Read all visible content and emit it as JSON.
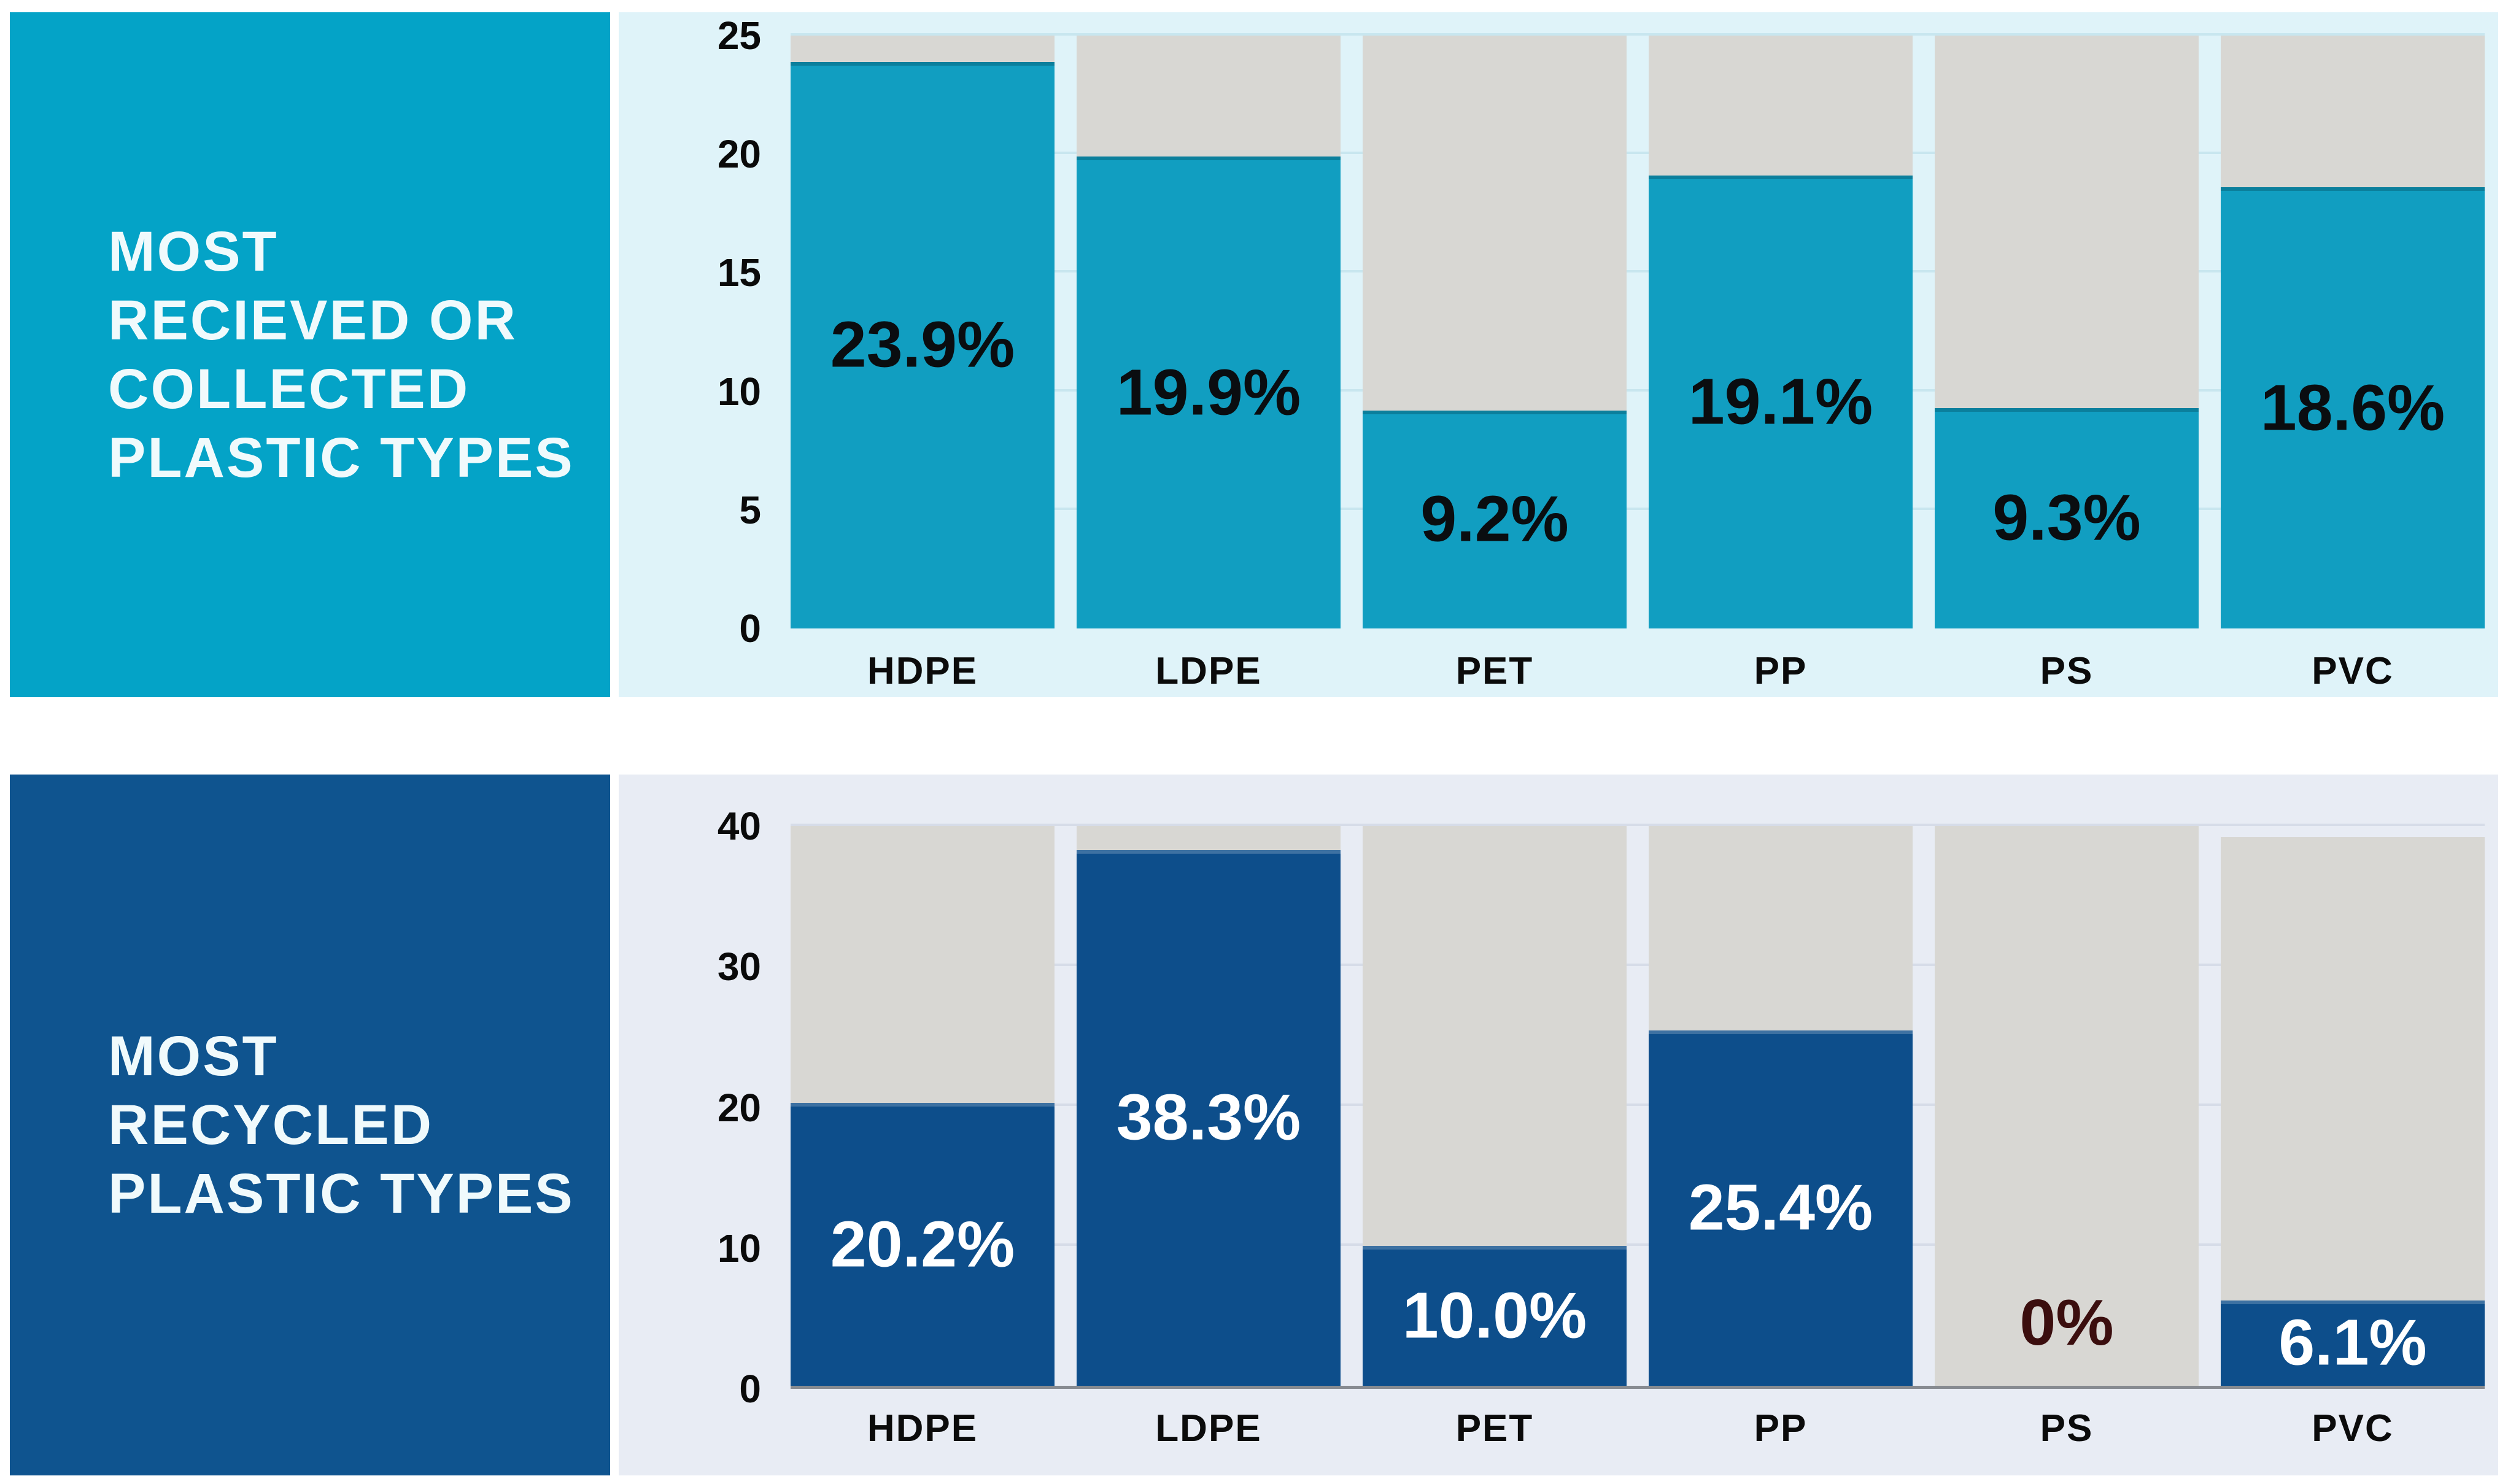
{
  "page": {
    "background": "#ffffff"
  },
  "chart_data": [
    {
      "type": "bar",
      "title": "MOST RECIEVED OR COLLECTED PLASTIC TYPES",
      "title_lines": [
        "MOST",
        "RECIEVED OR",
        "COLLECTED",
        "PLASTIC TYPES"
      ],
      "categories": [
        "HDPE",
        "LDPE",
        "PET",
        "PP",
        "PS",
        "PVC"
      ],
      "values": [
        23.9,
        19.9,
        9.2,
        19.1,
        9.3,
        18.6
      ],
      "value_labels": [
        "23.9%",
        "19.9%",
        "9.2%",
        "19.1%",
        "9.3%",
        "18.6%"
      ],
      "background_bar_values": [
        25,
        25,
        25,
        25,
        25,
        25
      ],
      "ylim": [
        0,
        25
      ],
      "yticks": [
        0,
        5,
        10,
        15,
        20,
        25
      ],
      "ytick_labels": [
        "0",
        "5",
        "10",
        "15",
        "20",
        "25"
      ],
      "grid": true,
      "legend": "none",
      "xlabel": "",
      "ylabel": "",
      "colors": {
        "panel": "#04A3C7",
        "plot_background": "#DFF3F9",
        "bar": "#119EC1",
        "background_bar": "#D8D7D3",
        "value_label": "#0A0D10",
        "axis_text": "#0A0A0A",
        "title_text": "#F0FAFC"
      }
    },
    {
      "type": "bar",
      "title": "MOST RECYCLED PLASTIC TYPES",
      "title_lines": [
        "MOST",
        "RECYCLED",
        "PLASTIC TYPES"
      ],
      "categories": [
        "HDPE",
        "LDPE",
        "PET",
        "PP",
        "PS",
        "PVC"
      ],
      "values": [
        20.2,
        38.3,
        10.0,
        25.4,
        0,
        6.1
      ],
      "value_labels": [
        "20.2%",
        "38.3%",
        "10.0%",
        "25.4%",
        "0%",
        "6.1%"
      ],
      "background_bar_values": [
        40,
        40,
        40,
        40,
        40,
        39.2
      ],
      "ylim": [
        0,
        40
      ],
      "yticks": [
        0,
        10,
        20,
        30,
        40
      ],
      "ytick_labels": [
        "0",
        "10",
        "20",
        "30",
        "40"
      ],
      "grid": true,
      "legend": "none",
      "xlabel": "",
      "ylabel": "",
      "colors": {
        "panel": "#0F548F",
        "plot_background": "#E8ECF4",
        "bar": "#0D4E8B",
        "background_bar": "#D8D7D3",
        "value_label": "#FFFFFF",
        "zero_label": "#3B0E0E",
        "axis_text": "#0A0A0A",
        "title_text": "#F0FAFC"
      }
    }
  ]
}
